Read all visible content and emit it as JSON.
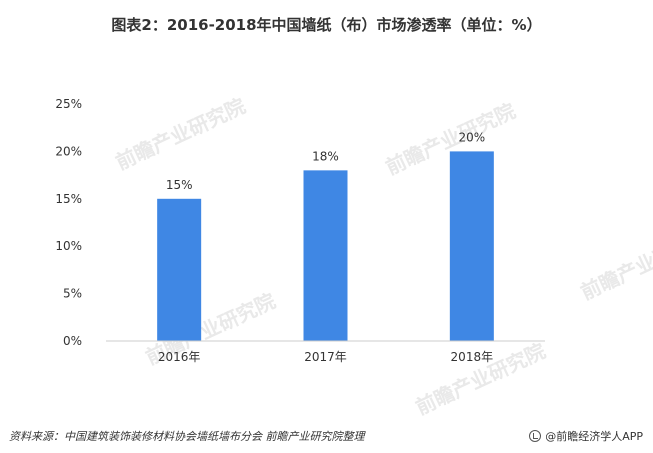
{
  "title": "图表2：2016-2018年中国墙纸（布）市场渗透率（单位：%）",
  "source": "资料来源：中国建筑装饰装修材料协会墙纸墙布分会 前瞻产业研究院整理",
  "brand": "@前瞻经济学人APP",
  "watermark": "前瞻产业研究院",
  "colors": {
    "bar": "#3f87e4",
    "axis": "#cccccc",
    "text": "#333333"
  },
  "chart_data": {
    "type": "bar",
    "title": "图表2：2016-2018年中国墙纸（布）市场渗透率（单位：%）",
    "categories": [
      "2016年",
      "2017年",
      "2018年"
    ],
    "values": [
      15,
      18,
      20
    ],
    "data_labels": [
      "15%",
      "18%",
      "20%"
    ],
    "y_ticks": [
      "0%",
      "5%",
      "10%",
      "15%",
      "20%",
      "25%"
    ],
    "ylim": [
      0,
      25
    ],
    "grid": false,
    "legend": "none"
  }
}
